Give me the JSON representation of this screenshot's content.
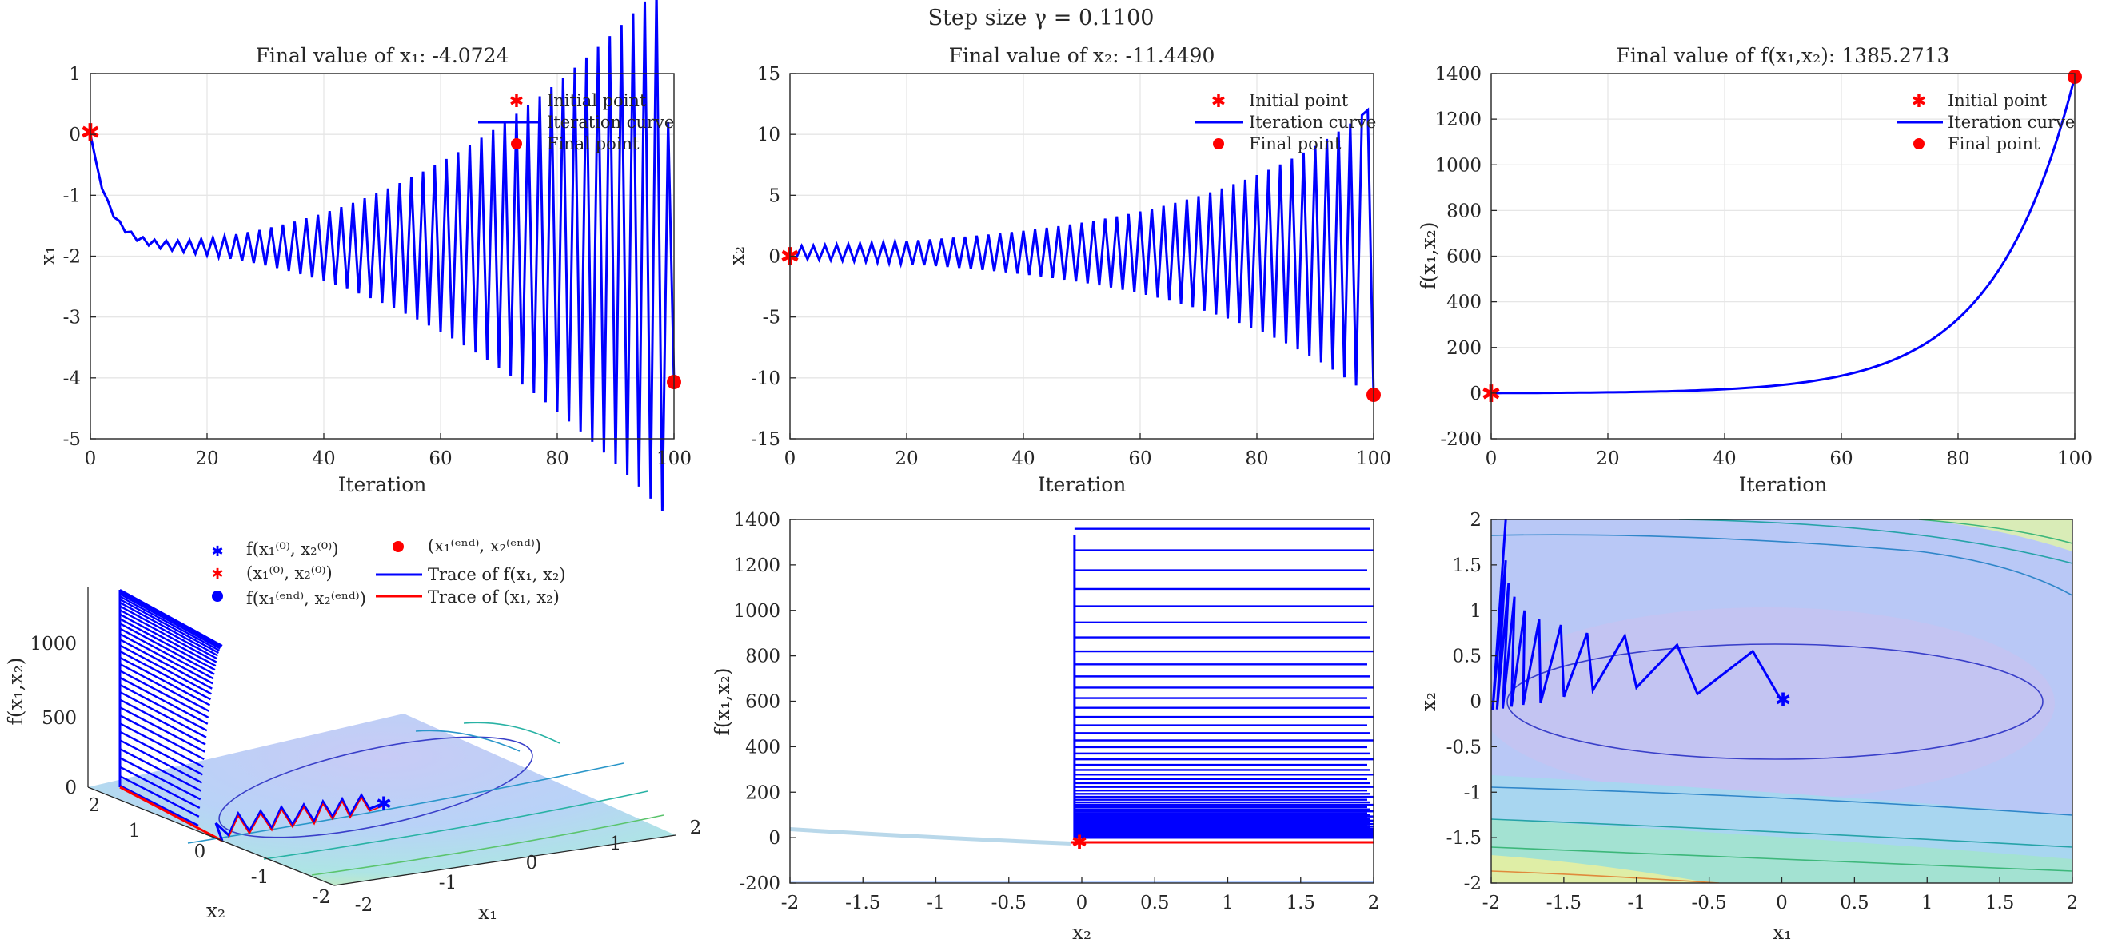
{
  "suptitle": "Step size γ = 0.1100",
  "panels": {
    "x1": {
      "title": "Final value of x₁: -4.0724",
      "xlabel": "Iteration",
      "ylabel": "x₁"
    },
    "x2": {
      "title": "Final value of x₂: -11.4490",
      "xlabel": "Iteration",
      "ylabel": "x₂"
    },
    "f": {
      "title": "Final value of f(x₁,x₂): 1385.2713",
      "xlabel": "Iteration",
      "ylabel": "f(x₁,x₂)"
    },
    "surf": {
      "xlabel": "x₁",
      "ylabel": "x₂",
      "zlabel": "f(x₁,x₂)"
    },
    "side": {
      "xlabel": "x₂",
      "ylabel": "f(x₁,x₂)"
    },
    "contour": {
      "xlabel": "x₁",
      "ylabel": "x₂"
    }
  },
  "legend_top": [
    "Initial point",
    "Iteration curve",
    "Final point"
  ],
  "legend_3d": [
    "f(x₁⁽⁰⁾, x₂⁽⁰⁾)",
    "(x₁⁽⁰⁾, x₂⁽⁰⁾)",
    "f(x₁⁽ᵉⁿᵈ⁾, x₂⁽ᵉⁿᵈ⁾)",
    "(x₁⁽ᵉⁿᵈ⁾, x₂⁽ᵉⁿᵈ⁾)",
    "Trace of f(x₁, x₂)",
    "Trace of (x₁, x₂)"
  ],
  "colors": {
    "curve": "#0000ff",
    "marker": "#ff0000",
    "axis": "#262626",
    "grid": "#e6e6e6"
  },
  "chart_data": [
    {
      "id": "x1",
      "type": "line",
      "title": "Final value of x₁: -4.0724",
      "xlabel": "Iteration",
      "ylabel": "x₁",
      "xlim": [
        0,
        100
      ],
      "ylim": [
        -5,
        1
      ],
      "xticks": [
        0,
        20,
        40,
        60,
        80,
        100
      ],
      "yticks": [
        -5,
        -4,
        -3,
        -2,
        -1,
        0,
        1
      ],
      "initial": 0,
      "final": -4.0724,
      "iterations": 100,
      "series": {
        "name": "Iteration curve",
        "model": "damped-then-growing oscillation around -1.85"
      }
    },
    {
      "id": "x2",
      "type": "line",
      "title": "Final value of x₂: -11.4490",
      "xlabel": "Iteration",
      "ylabel": "x₂",
      "xlim": [
        0,
        100
      ],
      "ylim": [
        -15,
        15
      ],
      "xticks": [
        0,
        20,
        40,
        60,
        80,
        100
      ],
      "yticks": [
        -15,
        -10,
        -5,
        0,
        5,
        10,
        15
      ],
      "initial": 0,
      "final": -11.449,
      "peak": 12,
      "iterations": 100
    },
    {
      "id": "f",
      "type": "line",
      "title": "Final value of f(x₁,x₂): 1385.2713",
      "xlabel": "Iteration",
      "ylabel": "f(x₁,x₂)",
      "xlim": [
        0,
        100
      ],
      "ylim": [
        -200,
        1400
      ],
      "xticks": [
        0,
        20,
        40,
        60,
        80,
        100
      ],
      "yticks": [
        -200,
        0,
        200,
        400,
        600,
        800,
        1000,
        1200,
        1400
      ],
      "initial": 0,
      "final": 1385.2713
    },
    {
      "id": "surf3d",
      "type": "scatter",
      "xlabel": "x₁",
      "ylabel": "x₂",
      "zlabel": "f(x₁,x₂)",
      "xticks": [
        -2,
        -1,
        0,
        1,
        2
      ],
      "yticks": [
        -2,
        -1,
        0,
        1,
        2
      ],
      "zticks": [
        0,
        500,
        1000
      ]
    },
    {
      "id": "side",
      "type": "line",
      "xlabel": "x₂",
      "ylabel": "f(x₁,x₂)",
      "xlim": [
        -2,
        2
      ],
      "ylim": [
        -200,
        1400
      ],
      "xticks": [
        -2,
        -1.5,
        -1,
        -0.5,
        0,
        0.5,
        1,
        1.5,
        2
      ],
      "yticks": [
        -200,
        0,
        200,
        400,
        600,
        800,
        1000,
        1200,
        1400
      ]
    },
    {
      "id": "contour",
      "type": "heatmap",
      "xlabel": "x₁",
      "ylabel": "x₂",
      "xlim": [
        -2,
        2
      ],
      "ylim": [
        -2,
        2
      ],
      "xticks": [
        -2,
        -1.5,
        -1,
        -0.5,
        0,
        0.5,
        1,
        1.5,
        2
      ],
      "yticks": [
        -2,
        -1.5,
        -1,
        -0.5,
        0,
        0.5,
        1,
        1.5,
        2
      ],
      "path": [
        [
          0,
          0
        ],
        [
          -0.2,
          0.55
        ],
        [
          -0.58,
          0.08
        ],
        [
          -0.72,
          0.62
        ],
        [
          -1.0,
          0.15
        ],
        [
          -1.08,
          0.72
        ],
        [
          -1.3,
          0.12
        ],
        [
          -1.34,
          0.75
        ],
        [
          -1.5,
          0.05
        ],
        [
          -1.52,
          0.84
        ],
        [
          -1.66,
          -0.02
        ],
        [
          -1.67,
          0.9
        ],
        [
          -1.78,
          -0.04
        ],
        [
          -1.77,
          1.0
        ],
        [
          -1.86,
          -0.06
        ],
        [
          -1.84,
          1.15
        ],
        [
          -1.92,
          -0.08
        ],
        [
          -1.88,
          1.3
        ],
        [
          -1.96,
          -0.09
        ],
        [
          -1.9,
          1.55
        ],
        [
          -1.99,
          -0.1
        ],
        [
          -1.9,
          2.0
        ]
      ]
    }
  ]
}
